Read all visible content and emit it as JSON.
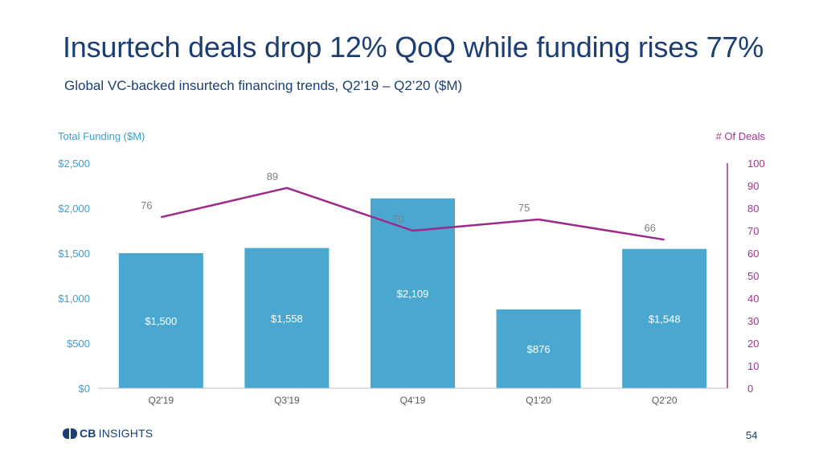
{
  "header": {
    "title": "Insurtech deals drop 12% QoQ while funding rises 77%",
    "subtitle": "Global VC-backed insurtech financing trends, Q2’19 – Q2’20 ($M)"
  },
  "chart_data": {
    "type": "bar",
    "categories": [
      "Q2'19",
      "Q3'19",
      "Q4'19",
      "Q1'20",
      "Q2'20"
    ],
    "series": [
      {
        "name": "Total Funding ($M)",
        "type": "bar",
        "axis": "left",
        "values": [
          1500,
          1558,
          2109,
          876,
          1548
        ],
        "labels": [
          "$1,500",
          "$1,558",
          "$2,109",
          "$876",
          "$1,548"
        ]
      },
      {
        "name": "# Of Deals",
        "type": "line",
        "axis": "right",
        "values": [
          76,
          89,
          70,
          75,
          66
        ],
        "labels": [
          "76",
          "89",
          "70",
          "75",
          "66"
        ]
      }
    ],
    "ylabel_left": "Total Funding ($M)",
    "ylabel_right": "# Of Deals",
    "ylim_left": [
      0,
      2500
    ],
    "ylim_right": [
      0,
      100
    ],
    "yticks_left": [
      "$0",
      "$500",
      "$1,000",
      "$1,500",
      "$2,000",
      "$2,500"
    ],
    "yticks_right": [
      "0",
      "10",
      "20",
      "30",
      "40",
      "50",
      "60",
      "70",
      "80",
      "90",
      "100"
    ],
    "grid": false,
    "colors": {
      "bar": "#4aa8d0",
      "line": "#9c2a8a",
      "left_axis": "#3f9fd0",
      "right_axis": "#a2338f"
    }
  },
  "footer": {
    "logo_cb": "CB",
    "logo_insights": "INSIGHTS",
    "page_number": "54"
  }
}
